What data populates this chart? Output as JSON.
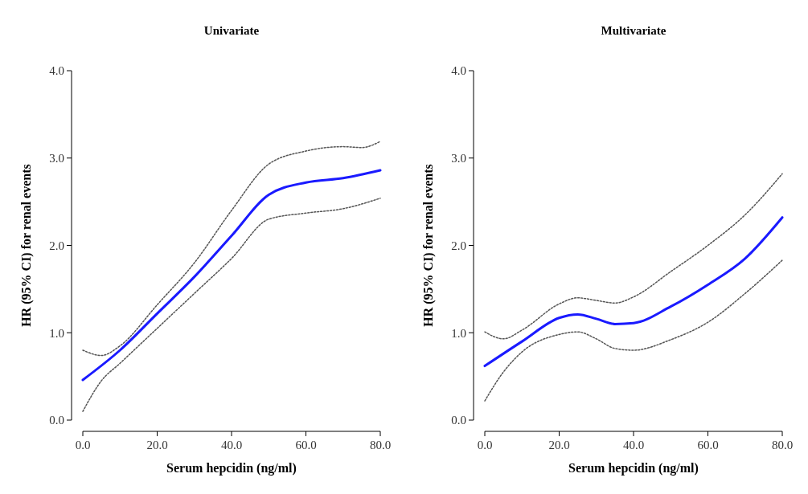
{
  "chart_data": [
    {
      "type": "line",
      "title": "Univariate",
      "xlabel": "Serum hepcidin (ng/ml)",
      "ylabel": "HR (95% CI) for renal events",
      "xlim": [
        0,
        80
      ],
      "ylim": [
        0,
        4
      ],
      "xticks": [
        {
          "value": 0,
          "label": "0.0"
        },
        {
          "value": 20,
          "label": "20.0"
        },
        {
          "value": 40,
          "label": "40.0"
        },
        {
          "value": 60,
          "label": "60.0"
        },
        {
          "value": 80,
          "label": "80.0"
        }
      ],
      "yticks": [
        {
          "value": 0,
          "label": "0.0"
        },
        {
          "value": 1,
          "label": "1.0"
        },
        {
          "value": 2,
          "label": "2.0"
        },
        {
          "value": 3,
          "label": "3.0"
        },
        {
          "value": 4,
          "label": "4.0"
        }
      ],
      "grid": false,
      "series": [
        {
          "color": "#1a1aff",
          "line_style": "solid",
          "x": [
            0,
            10,
            20,
            30,
            40,
            50,
            60,
            70,
            80
          ],
          "values": [
            0.46,
            0.8,
            1.22,
            1.64,
            2.11,
            2.58,
            2.72,
            2.77,
            2.86
          ]
        },
        {
          "color": "#555555",
          "line_style": "dotted",
          "x": [
            0,
            5,
            10,
            20,
            30,
            40,
            50,
            60,
            70,
            75,
            80
          ],
          "values": [
            0.8,
            0.74,
            0.85,
            1.32,
            1.8,
            2.4,
            2.93,
            3.08,
            3.13,
            3.12,
            3.19
          ]
        },
        {
          "color": "#555555",
          "line_style": "dotted",
          "x": [
            0,
            5,
            10,
            20,
            30,
            40,
            50,
            60,
            70,
            80
          ],
          "values": [
            0.1,
            0.45,
            0.65,
            1.05,
            1.45,
            1.85,
            2.3,
            2.37,
            2.42,
            2.54
          ]
        }
      ]
    },
    {
      "type": "line",
      "title": "Multivariate",
      "xlabel": "Serum hepcidin (ng/ml)",
      "ylabel": "HR (95% CI) for renal events",
      "xlim": [
        0,
        80
      ],
      "ylim": [
        0,
        4
      ],
      "xticks": [
        {
          "value": 0,
          "label": "0.0"
        },
        {
          "value": 20,
          "label": "20.0"
        },
        {
          "value": 40,
          "label": "40.0"
        },
        {
          "value": 60,
          "label": "60.0"
        },
        {
          "value": 80,
          "label": "80.0"
        }
      ],
      "yticks": [
        {
          "value": 0,
          "label": "0.0"
        },
        {
          "value": 1,
          "label": "1.0"
        },
        {
          "value": 2,
          "label": "2.0"
        },
        {
          "value": 3,
          "label": "3.0"
        },
        {
          "value": 4,
          "label": "4.0"
        }
      ],
      "grid": false,
      "series": [
        {
          "color": "#1a1aff",
          "line_style": "solid",
          "x": [
            0,
            10,
            20,
            25,
            30,
            35,
            40,
            50,
            60,
            70,
            80
          ],
          "values": [
            0.62,
            0.9,
            1.17,
            1.21,
            1.16,
            1.1,
            1.11,
            1.3,
            1.55,
            1.85,
            2.32
          ]
        },
        {
          "color": "#555555",
          "line_style": "dotted",
          "x": [
            0,
            5,
            10,
            20,
            25,
            30,
            35,
            40,
            50,
            60,
            70,
            80
          ],
          "values": [
            1.01,
            0.93,
            1.03,
            1.33,
            1.4,
            1.37,
            1.34,
            1.41,
            1.7,
            2.0,
            2.35,
            2.82
          ]
        },
        {
          "color": "#555555",
          "line_style": "dotted",
          "x": [
            0,
            5,
            10,
            20,
            25,
            30,
            35,
            40,
            50,
            60,
            70,
            80
          ],
          "values": [
            0.22,
            0.55,
            0.78,
            0.98,
            1.01,
            0.93,
            0.82,
            0.8,
            0.92,
            1.12,
            1.45,
            1.83
          ]
        }
      ]
    }
  ]
}
